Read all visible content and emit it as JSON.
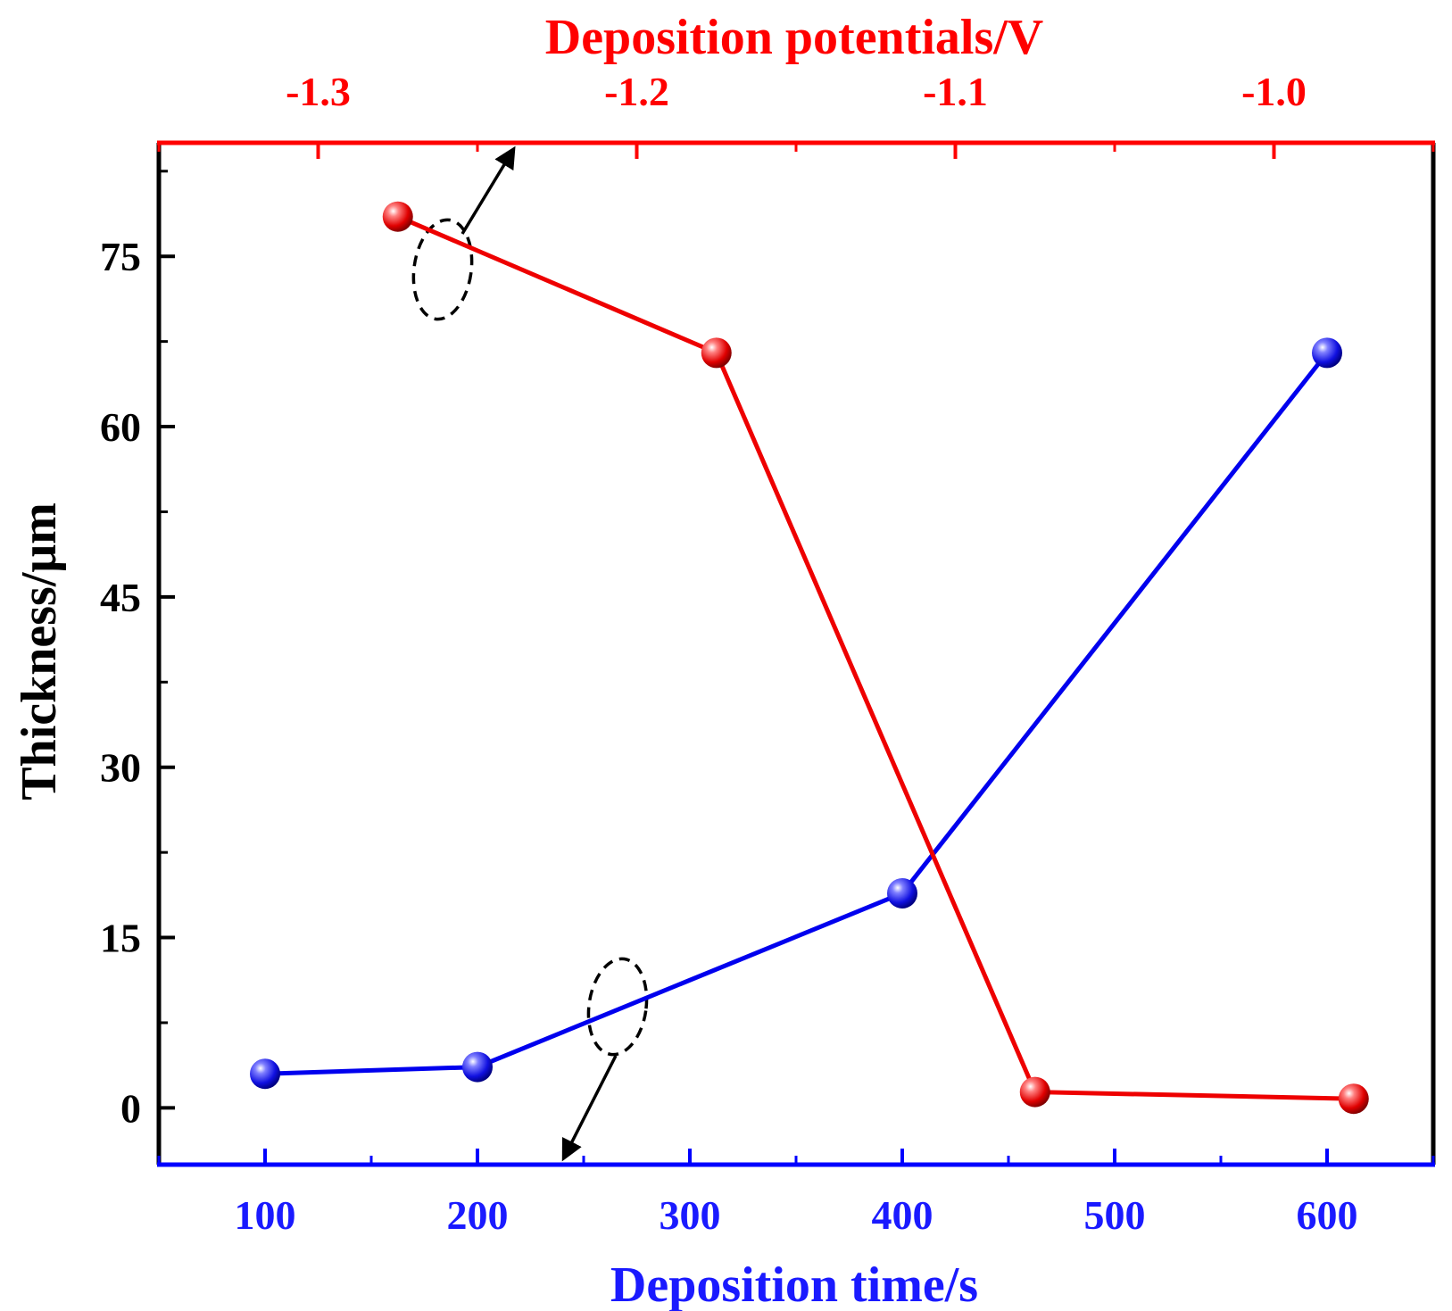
{
  "chart_data": {
    "type": "line",
    "title": "",
    "bottom_axis": {
      "label": "Deposition time/s",
      "range": [
        50,
        650
      ],
      "ticks": [
        100,
        200,
        300,
        400,
        500,
        600
      ],
      "tick_labels": [
        "100",
        "200",
        "300",
        "400",
        "500",
        "600"
      ],
      "color": "#1a1aff"
    },
    "top_axis": {
      "label": "Deposition potentials/V",
      "range": [
        -1.35,
        -0.95
      ],
      "ticks": [
        -1.3,
        -1.2,
        -1.1,
        -1.0
      ],
      "tick_labels": [
        "-1.3",
        "-1.2",
        "-1.1",
        "-1.0"
      ],
      "color": "#ff0000"
    },
    "y_axis": {
      "label": "Thickness/μm",
      "range": [
        -5,
        85
      ],
      "ticks": [
        0,
        15,
        30,
        45,
        60,
        75
      ],
      "tick_labels": [
        "0",
        "15",
        "30",
        "45",
        "60",
        "75"
      ],
      "color": "#000000"
    },
    "series": [
      {
        "name": "Deposition time",
        "axis": "bottom",
        "color": "#0000ee",
        "x": [
          100,
          200,
          400,
          600
        ],
        "y": [
          3.0,
          3.6,
          18.9,
          66.5
        ]
      },
      {
        "name": "Deposition potentials",
        "axis": "top",
        "color": "#ee0000",
        "x": [
          -1.275,
          -1.175,
          -1.075,
          -0.975
        ],
        "y": [
          78.5,
          66.5,
          1.4,
          0.8
        ]
      }
    ],
    "annotations": [
      {
        "type": "dashed-ellipse-arrow",
        "series": "Deposition potentials",
        "points_to": "top axis"
      },
      {
        "type": "dashed-ellipse-arrow",
        "series": "Deposition time",
        "points_to": "bottom axis"
      }
    ],
    "grid": false,
    "legend": "none"
  }
}
